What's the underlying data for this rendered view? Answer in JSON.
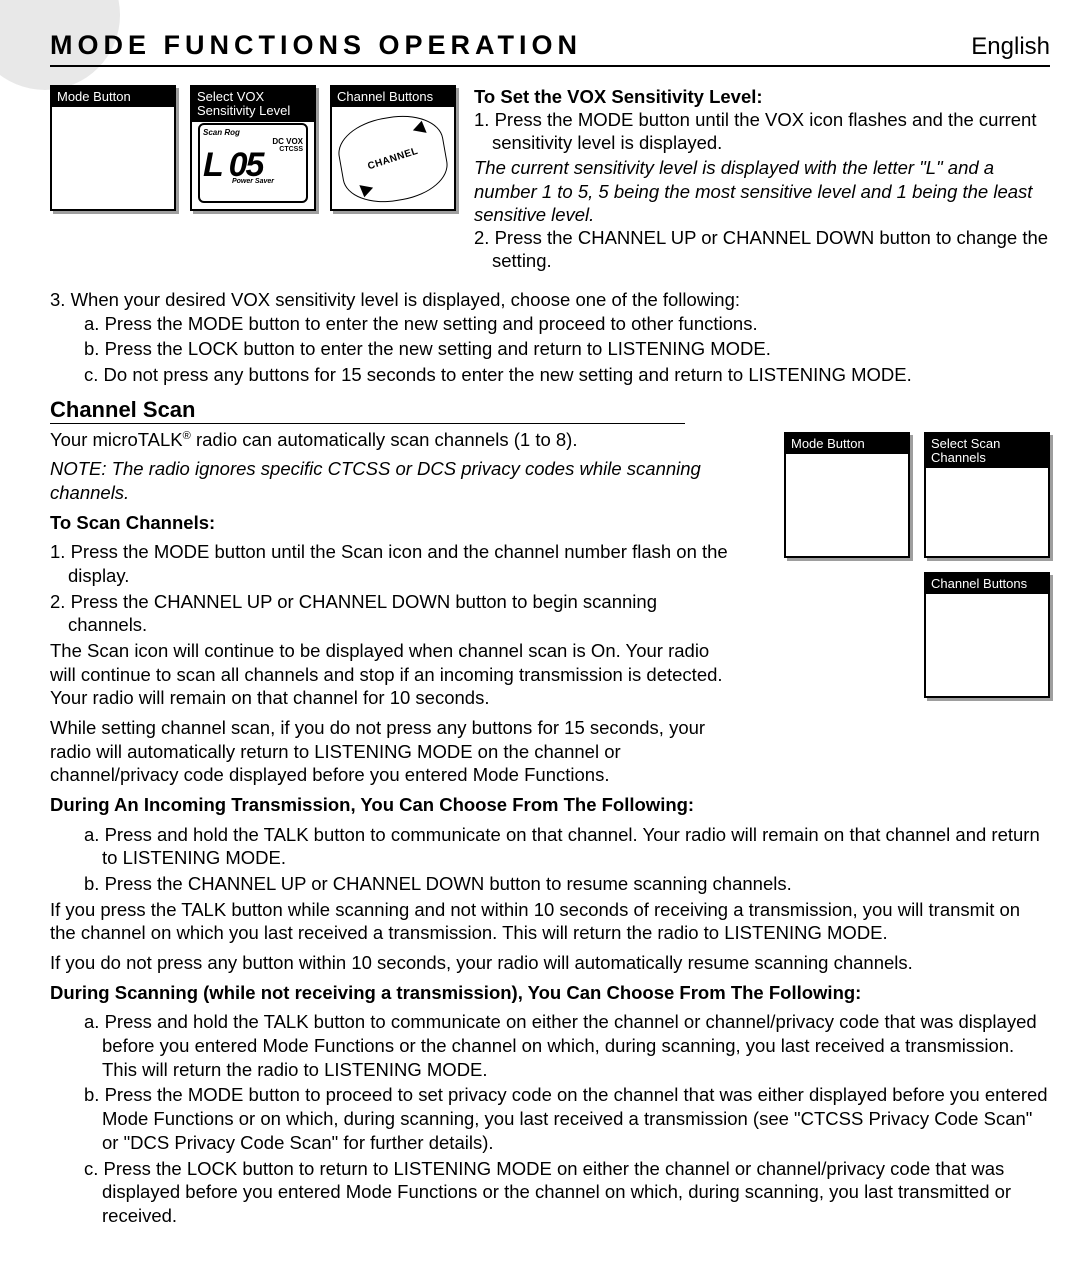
{
  "header": {
    "title": "MODE FUNCTIONS OPERATION",
    "lang": "English"
  },
  "top_illus": [
    {
      "label": "Mode Button"
    },
    {
      "label": "Select VOX Sensitivity Level"
    },
    {
      "label": "Channel Buttons"
    }
  ],
  "lcd": {
    "scan": "Scan Rog",
    "dc": "DC   VOX",
    "ctcss": "CTCSS",
    "big": "L 05",
    "ps": "Power Saver"
  },
  "chan_label": "CHANNEL",
  "vox": {
    "heading": "To Set the VOX Sensitivity Level:",
    "step1": "1. Press the MODE button until the VOX icon flashes and the current sensitivity level is displayed.",
    "note": "The current sensitivity level is displayed with the letter \"L\" and a number 1 to 5, 5 being the most sensitive level and 1 being the least sensitive level.",
    "step2": "2. Press the CHANNEL UP or CHANNEL DOWN button to change the setting.",
    "step3": "3. When your desired VOX sensitivity level is displayed, choose one of the following:",
    "step3a": "a. Press the MODE button to enter the new setting and proceed to other functions.",
    "step3b": "b. Press the LOCK button to enter the new setting and return to LISTENING MODE.",
    "step3c": "c. Do not press any buttons for 15 seconds to enter the new setting and return to LISTENING MODE."
  },
  "scan": {
    "title": "Channel Scan",
    "intro_pre": "Your microTALK",
    "intro_post": " radio can automatically scan channels (1 to 8).",
    "note": "NOTE: The radio ignores specific CTCSS or DCS privacy codes while scanning channels.",
    "toscan_heading": "To Scan Channels:",
    "s1": "1. Press the MODE button until the Scan icon and the channel number flash on the display.",
    "s2": "2. Press the CHANNEL UP or CHANNEL DOWN button to begin scanning channels.",
    "p1": "The Scan icon will continue to be displayed when channel scan is On. Your radio will continue to scan all channels and stop if an incoming transmission is detected. Your radio will remain on that channel for 10 seconds.",
    "p2": "While setting channel scan, if you do not press any buttons for 15 seconds, your radio will automatically return to LISTENING MODE on the channel or channel/privacy code displayed before you entered Mode Functions.",
    "incoming_heading": "During An Incoming Transmission, You Can Choose From The Following:",
    "in_a": "a. Press and hold the TALK button to communicate on that channel. Your radio will remain on that channel and return to LISTENING MODE.",
    "in_b": "b. Press the CHANNEL UP or CHANNEL DOWN button to resume scanning channels.",
    "p3": "If you press the TALK button while scanning and not within 10 seconds of receiving a transmission, you will transmit on the channel on which you last received a transmission. This will return the radio to LISTENING MODE.",
    "p4": "If you do not press any button within 10 seconds, your radio will automatically resume scanning channels.",
    "during_heading": "During Scanning (while not receiving a transmission), You Can Choose From The Following:",
    "d_a": "a. Press and hold the TALK button to communicate on either the channel or channel/privacy code that was displayed before you entered Mode Functions or the channel on which, during scanning, you last received a transmission. This will return the radio to LISTENING MODE.",
    "d_b": "b. Press the MODE button to proceed to set privacy code on the channel that was either displayed before you entered Mode Functions or on which, during scanning, you last received a transmission (see \"CTCSS Privacy Code Scan\" or \"DCS Privacy Code Scan\" for further details).",
    "d_c": "c. Press the LOCK button to return to LISTENING MODE on either the channel or channel/privacy code that was displayed before you entered Mode Functions or the channel on which, during scanning, you last transmitted or received."
  },
  "right_illus": [
    {
      "label": "Mode Button"
    },
    {
      "label": "Select Scan Channels"
    },
    {
      "label": "Channel Buttons"
    }
  ]
}
